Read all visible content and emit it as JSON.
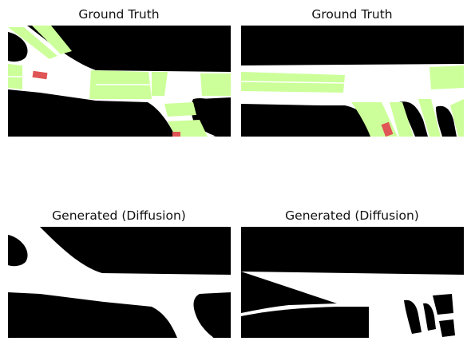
{
  "panels": [
    {
      "title": "Ground Truth"
    },
    {
      "title": "Ground Truth"
    },
    {
      "title": "Generated (Diffusion)"
    },
    {
      "title": "Generated (Diffusion)"
    }
  ],
  "colors": {
    "background": "#000000",
    "road": "#ffffff",
    "crosswalk": "#ccff99",
    "marker": "#e05555"
  }
}
